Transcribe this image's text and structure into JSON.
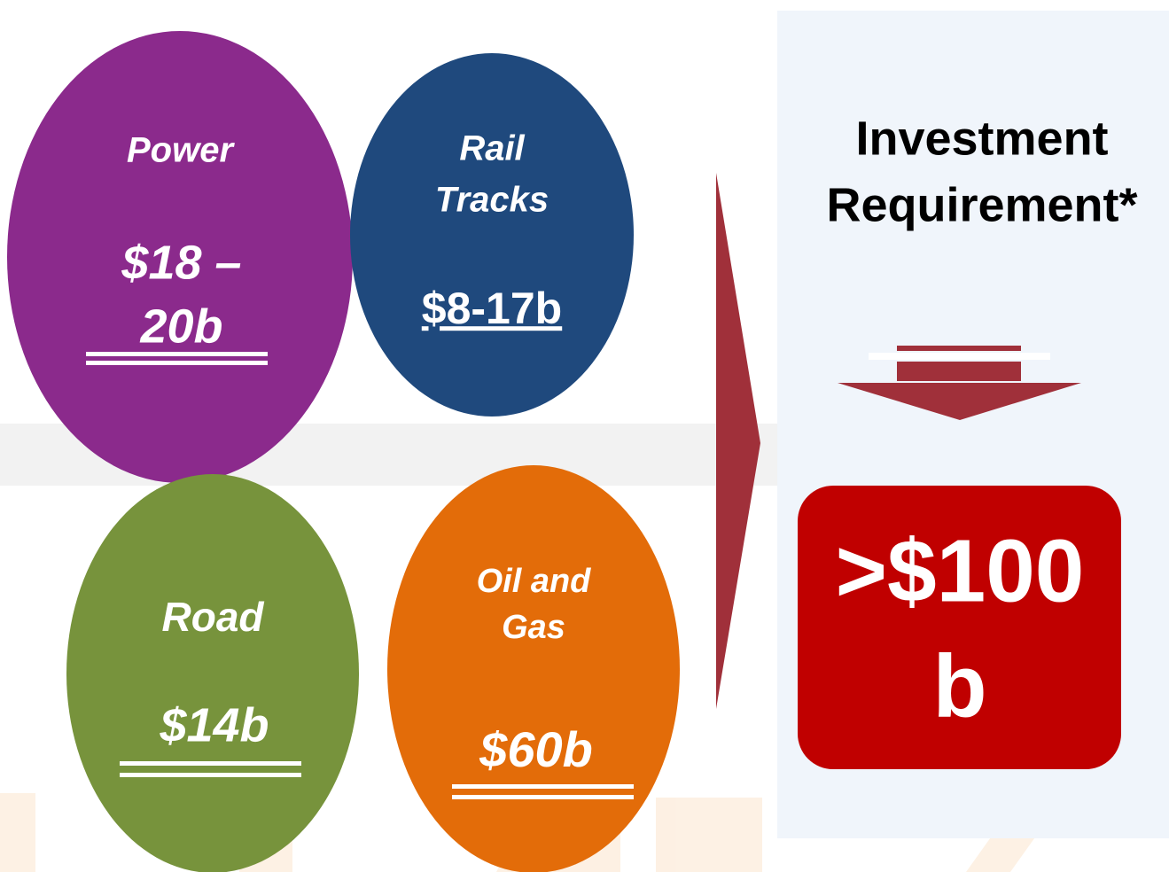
{
  "sectors": [
    {
      "label": [
        "Power"
      ],
      "amount": [
        "$18 –",
        "20b"
      ],
      "color": "#8b2a8c"
    },
    {
      "label": [
        "Rail",
        "Tracks"
      ],
      "amount": [
        "$8-17b"
      ],
      "color": "#1f497d"
    },
    {
      "label": [
        "Road"
      ],
      "amount": [
        "$14b"
      ],
      "color": "#77933c"
    },
    {
      "label": [
        "Oil and",
        "Gas"
      ],
      "amount": [
        "$60b"
      ],
      "color": "#e36c09"
    }
  ],
  "summary": {
    "title": [
      "Investment",
      "Requirement*"
    ],
    "total": [
      ">$100",
      "b"
    ],
    "color": "#c00000"
  }
}
